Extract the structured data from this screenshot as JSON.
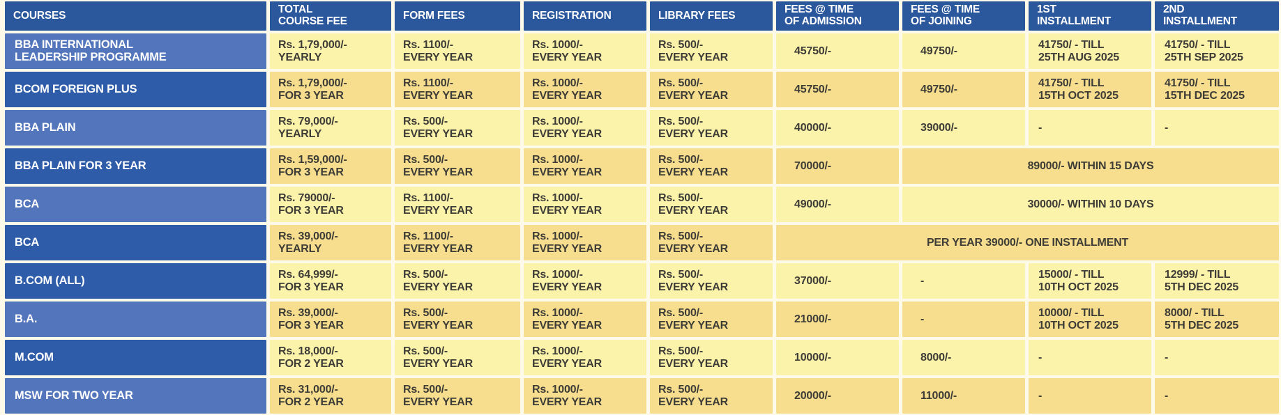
{
  "colors": {
    "header_blue": "#2B579C",
    "row_blue_dark": "#2E5CA9",
    "row_blue_light": "#5275BB",
    "cell_yellow_light": "#FCF3AB",
    "cell_yellow_gold": "#F6DE8E",
    "page_background": "#FDFAEA",
    "text_on_blue": "#FFFFFF",
    "text_on_yellow": "#3E3C37"
  },
  "header": {
    "courses": {
      "l1": "COURSES"
    },
    "total": {
      "l1": "TOTAL",
      "l2": "COURSE FEE"
    },
    "form": {
      "l1": "FORM FEES"
    },
    "registration": {
      "l1": "REGISTRATION"
    },
    "library": {
      "l1": "LIBRARY FEES"
    },
    "admission": {
      "l1": "FEES @ TIME",
      "l2": "OF ADMISSION"
    },
    "joining": {
      "l1": "FEES @ TIME",
      "l2": "OF JOINING"
    },
    "first": {
      "l1": "1ST",
      "l2": "INSTALLMENT"
    },
    "second": {
      "l1": "2ND",
      "l2": "INSTALLMENT"
    }
  },
  "rows": [
    {
      "course": {
        "l1": "BBA INTERNATIONAL",
        "l2": "LEADERSHIP PROGRAMME"
      },
      "total": {
        "l1": "Rs. 1,79,000/-",
        "l2": "YEARLY"
      },
      "form": {
        "l1": "Rs. 1100/-",
        "l2": "EVERY YEAR"
      },
      "registration": {
        "l1": "Rs. 1000/-",
        "l2": "EVERY YEAR"
      },
      "library": {
        "l1": "Rs. 500/-",
        "l2": "EVERY YEAR"
      },
      "admission": {
        "l1": "45750/-"
      },
      "joining": {
        "l1": "49750/-"
      },
      "first": {
        "l1": "41750/ - TILL",
        "l2": "25TH AUG 2025"
      },
      "second": {
        "l1": "41750/ - TILL",
        "l2": "25TH SEP 2025"
      }
    },
    {
      "course": {
        "l1": "BCOM FOREIGN PLUS"
      },
      "total": {
        "l1": "Rs. 1,79,000/-",
        "l2": "FOR 3 YEAR"
      },
      "form": {
        "l1": "Rs. 1100/-",
        "l2": "EVERY YEAR"
      },
      "registration": {
        "l1": "Rs. 1000/-",
        "l2": "EVERY YEAR"
      },
      "library": {
        "l1": "Rs. 500/-",
        "l2": "EVERY YEAR"
      },
      "admission": {
        "l1": "45750/-"
      },
      "joining": {
        "l1": "49750/-"
      },
      "first": {
        "l1": "41750/ - TILL",
        "l2": "15TH OCT 2025"
      },
      "second": {
        "l1": "41750/ - TILL",
        "l2": "15TH DEC 2025"
      }
    },
    {
      "course": {
        "l1": "BBA PLAIN"
      },
      "total": {
        "l1": "Rs. 79,000/-",
        "l2": "YEARLY"
      },
      "form": {
        "l1": "Rs. 500/-",
        "l2": "EVERY YEAR"
      },
      "registration": {
        "l1": "Rs. 1000/-",
        "l2": "EVERY YEAR"
      },
      "library": {
        "l1": "Rs. 500/-",
        "l2": "EVERY YEAR"
      },
      "admission": {
        "l1": "40000/-"
      },
      "joining": {
        "l1": "39000/-"
      },
      "first": {
        "l1": "-"
      },
      "second": {
        "l1": "-"
      }
    },
    {
      "course": {
        "l1": "BBA PLAIN FOR 3 YEAR"
      },
      "total": {
        "l1": "Rs. 1,59,000/-",
        "l2": "FOR 3 YEAR"
      },
      "form": {
        "l1": "Rs. 500/-",
        "l2": "EVERY YEAR"
      },
      "registration": {
        "l1": "Rs. 1000/-",
        "l2": "EVERY YEAR"
      },
      "library": {
        "l1": "Rs. 500/-",
        "l2": "EVERY YEAR"
      },
      "admission": {
        "l1": "70000/-"
      },
      "merged": {
        "l1": "89000/- WITHIN 15 DAYS"
      }
    },
    {
      "course": {
        "l1": "BCA"
      },
      "total": {
        "l1": "Rs. 79000/-",
        "l2": "FOR 3 YEAR"
      },
      "form": {
        "l1": "Rs. 1100/-",
        "l2": "EVERY YEAR"
      },
      "registration": {
        "l1": "Rs. 1000/-",
        "l2": "EVERY YEAR"
      },
      "library": {
        "l1": "Rs. 500/-",
        "l2": "EVERY YEAR"
      },
      "admission": {
        "l1": "49000/-"
      },
      "merged": {
        "l1": "30000/- WITHIN 10 DAYS"
      }
    },
    {
      "course": {
        "l1": "BCA"
      },
      "total": {
        "l1": "Rs. 39,000/-",
        "l2": "YEARLY"
      },
      "form": {
        "l1": "Rs. 1100/-",
        "l2": "EVERY YEAR"
      },
      "registration": {
        "l1": "Rs. 1000/-",
        "l2": "EVERY YEAR"
      },
      "library": {
        "l1": "Rs. 500/-",
        "l2": "EVERY YEAR"
      },
      "merged": {
        "l1": "PER YEAR 39000/- ONE INSTALLMENT"
      }
    },
    {
      "course": {
        "l1": "B.COM (ALL)"
      },
      "total": {
        "l1": "Rs. 64,999/-",
        "l2": "FOR 3 YEAR"
      },
      "form": {
        "l1": "Rs. 500/-",
        "l2": "EVERY YEAR"
      },
      "registration": {
        "l1": "Rs. 1000/-",
        "l2": "EVERY YEAR"
      },
      "library": {
        "l1": "Rs. 500/-",
        "l2": "EVERY YEAR"
      },
      "admission": {
        "l1": "37000/-"
      },
      "joining": {
        "l1": "-"
      },
      "first": {
        "l1": "15000/ - TILL",
        "l2": "10TH OCT 2025"
      },
      "second": {
        "l1": "12999/ - TILL",
        "l2": "5TH DEC 2025"
      }
    },
    {
      "course": {
        "l1": "B.A."
      },
      "total": {
        "l1": "Rs. 39,000/-",
        "l2": "FOR 3 YEAR"
      },
      "form": {
        "l1": "Rs. 500/-",
        "l2": "EVERY YEAR"
      },
      "registration": {
        "l1": "Rs. 1000/-",
        "l2": "EVERY YEAR"
      },
      "library": {
        "l1": "Rs. 500/-",
        "l2": "EVERY YEAR"
      },
      "admission": {
        "l1": "21000/-"
      },
      "joining": {
        "l1": "-"
      },
      "first": {
        "l1": "10000/ - TILL",
        "l2": "10TH OCT 2025"
      },
      "second": {
        "l1": "8000/ - TILL",
        "l2": "5TH DEC 2025"
      }
    },
    {
      "course": {
        "l1": "M.COM"
      },
      "total": {
        "l1": "Rs. 18,000/-",
        "l2": "FOR 2 YEAR"
      },
      "form": {
        "l1": "Rs. 500/-",
        "l2": "EVERY YEAR"
      },
      "registration": {
        "l1": "Rs. 1000/-",
        "l2": "EVERY YEAR"
      },
      "library": {
        "l1": "Rs. 500/-",
        "l2": "EVERY YEAR"
      },
      "admission": {
        "l1": "10000/-"
      },
      "joining": {
        "l1": "8000/-"
      },
      "first": {
        "l1": "-"
      },
      "second": {
        "l1": "-"
      }
    },
    {
      "course": {
        "l1": "MSW FOR TWO YEAR"
      },
      "total": {
        "l1": "Rs. 31,000/-",
        "l2": "FOR 2 YEAR"
      },
      "form": {
        "l1": "Rs. 500/-",
        "l2": "EVERY YEAR"
      },
      "registration": {
        "l1": "Rs. 1000/-",
        "l2": "EVERY YEAR"
      },
      "library": {
        "l1": "Rs. 500/-",
        "l2": "EVERY YEAR"
      },
      "admission": {
        "l1": "20000/-"
      },
      "joining": {
        "l1": "11000/-"
      },
      "first": {
        "l1": "-"
      },
      "second": {
        "l1": "-"
      }
    }
  ]
}
